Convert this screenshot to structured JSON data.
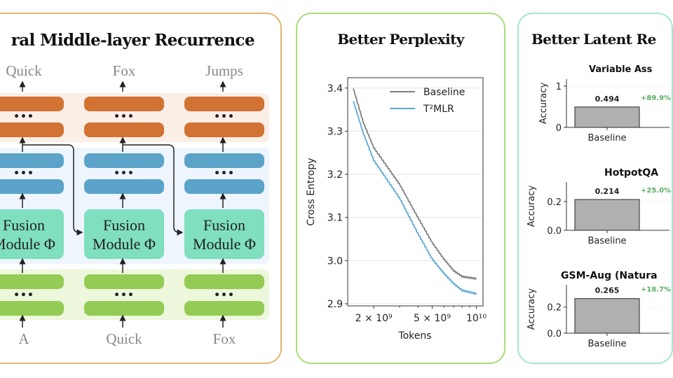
{
  "left_panel": {
    "title": "ral Middle-layer Recurrence",
    "border_color": "#dfb56f",
    "outputs": [
      "Quick",
      "Fox",
      "Jumps"
    ],
    "inputs": [
      "A",
      "Quick",
      "Fox"
    ],
    "ellipsis": "•••",
    "fusion_line1": "Fusion",
    "fusion_line2": "Module Φ",
    "colors": {
      "top": "#d27233",
      "middle": "#5ba3c9",
      "bottom": "#94cb55",
      "fusion": "#7fdfbf"
    }
  },
  "middle_panel": {
    "title": "Better Perplexity",
    "border_color": "#a6de7a"
  },
  "right_panel": {
    "title": "Better Latent Re",
    "border_color": "#a6e4d4"
  },
  "chart_data": [
    {
      "type": "line",
      "xlabel": "Tokens",
      "ylabel": "Cross Entropy",
      "xscale": "log",
      "xlim": [
        1330000000.0,
        11100000000.0
      ],
      "ylim": [
        2.895,
        3.424
      ],
      "xticks": [
        {
          "value": 2000000000.0,
          "label": "2 × 10⁹"
        },
        {
          "value": 5000000000.0,
          "label": "5 × 10⁹"
        },
        {
          "value": 10000000000.0,
          "label": "10¹⁰"
        }
      ],
      "yticks": [
        2.9,
        3.0,
        3.1,
        3.2,
        3.3,
        3.4
      ],
      "grid": "horizontal",
      "legend": "top-right",
      "x": [
        1450000000.0,
        1700000000.0,
        2000000000.0,
        3000000000.0,
        4000000000.0,
        5000000000.0,
        6000000000.0,
        7000000000.0,
        8000000000.0,
        10000000000.0
      ],
      "series": [
        {
          "name": "Baseline",
          "color": "#808080",
          "values": [
            3.4,
            3.32,
            3.262,
            3.177,
            3.1,
            3.042,
            3.004,
            2.977,
            2.963,
            2.958
          ]
        },
        {
          "name": "T²MLR",
          "color": "#5aa9d6",
          "values": [
            3.371,
            3.295,
            3.233,
            3.145,
            3.063,
            3.004,
            2.971,
            2.947,
            2.931,
            2.923
          ]
        }
      ]
    },
    {
      "type": "bar",
      "title": "Variable Ass",
      "ylabel": "Accuracy",
      "categories": [
        "Baseline"
      ],
      "values": [
        0.494
      ],
      "value_labels": [
        "0.494"
      ],
      "ylim": [
        0,
        1.17
      ],
      "yticks": [
        {
          "value": 0,
          "label": "0"
        },
        {
          "value": 1,
          "label": "1"
        }
      ],
      "annotation": "+89.9%"
    },
    {
      "type": "bar",
      "title": "HotpotQA",
      "ylabel": "Accuracy",
      "categories": [
        "Baseline"
      ],
      "values": [
        0.214
      ],
      "value_labels": [
        "0.214"
      ],
      "ylim": [
        0,
        0.336
      ],
      "yticks": [
        {
          "value": 0,
          "label": "0.0"
        },
        {
          "value": 0.2,
          "label": "0.2"
        }
      ],
      "annotation": "+25.0%"
    },
    {
      "type": "bar",
      "title": "GSM-Aug (Natura",
      "ylabel": "Accuracy",
      "categories": [
        "Baseline"
      ],
      "values": [
        0.265
      ],
      "value_labels": [
        "0.265"
      ],
      "ylim": [
        0,
        0.37
      ],
      "yticks": [
        {
          "value": 0,
          "label": "0.0"
        },
        {
          "value": 0.2,
          "label": "0.2"
        }
      ],
      "annotation": "+18.7%"
    }
  ],
  "colors": {
    "bar": "#b0b0b0",
    "annotation": "#5aae61"
  }
}
